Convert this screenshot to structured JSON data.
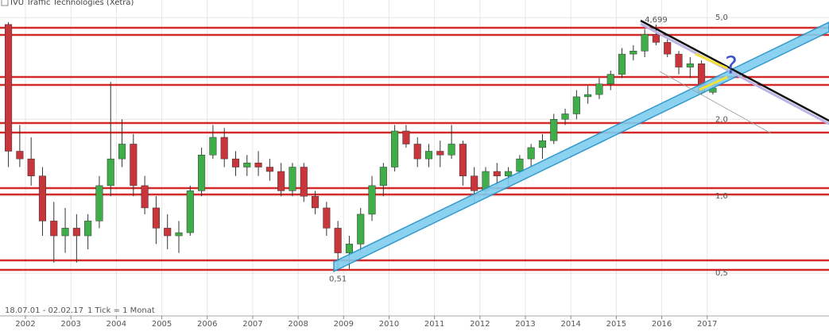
{
  "chart_data": {
    "type": "candlestick",
    "title": "IVU Traffic Technologies (Xetra)",
    "range_label": "18.07.01 - 02.02.17",
    "tick_label": "1 Tick = 1 Monat",
    "question_mark": "?",
    "log_scale": true,
    "grid": true,
    "up_color": "#3fae49",
    "down_color": "#c8353a",
    "xlim": [
      2001.44,
      2019.68
    ],
    "xticks": [
      2002,
      2003,
      2004,
      2005,
      2006,
      2007,
      2008,
      2009,
      2010,
      2011,
      2012,
      2013,
      2014,
      2015,
      2016,
      2017
    ],
    "ylim": [
      0.34,
      5.86
    ],
    "yticks": [
      {
        "value": 5,
        "label": "5,0"
      },
      {
        "value": 2,
        "label": "2,0"
      },
      {
        "value": 1,
        "label": "1,0"
      },
      {
        "value": 0.5,
        "label": "0,5"
      }
    ],
    "annotations": [
      {
        "label": "4,699",
        "value": 4.699
      },
      {
        "label": "0,51",
        "value": 0.51
      }
    ],
    "x": [
      2001.625,
      2001.875,
      2002.125,
      2002.375,
      2002.625,
      2002.875,
      2003.125,
      2003.375,
      2003.625,
      2003.875,
      2004.125,
      2004.375,
      2004.625,
      2004.875,
      2005.125,
      2005.375,
      2005.625,
      2005.875,
      2006.125,
      2006.375,
      2006.625,
      2006.875,
      2007.125,
      2007.375,
      2007.625,
      2007.875,
      2008.125,
      2008.375,
      2008.625,
      2008.875,
      2009.125,
      2009.375,
      2009.625,
      2009.875,
      2010.125,
      2010.375,
      2010.625,
      2010.875,
      2011.125,
      2011.375,
      2011.625,
      2011.875,
      2012.125,
      2012.375,
      2012.625,
      2012.875,
      2013.125,
      2013.375,
      2013.625,
      2013.875,
      2014.125,
      2014.375,
      2014.625,
      2014.875,
      2015.125,
      2015.375,
      2015.625,
      2015.875,
      2016.125,
      2016.375,
      2016.625,
      2016.875,
      2017.125
    ],
    "open": [
      4.7,
      1.5,
      1.4,
      1.2,
      0.8,
      0.7,
      0.75,
      0.7,
      0.8,
      1.1,
      1.4,
      1.6,
      1.1,
      0.9,
      0.75,
      0.7,
      0.72,
      1.05,
      1.45,
      1.7,
      1.4,
      1.3,
      1.35,
      1.3,
      1.25,
      1.05,
      1.3,
      1.0,
      0.9,
      0.75,
      0.6,
      0.65,
      0.85,
      1.1,
      1.3,
      1.8,
      1.6,
      1.4,
      1.5,
      1.45,
      1.6,
      1.2,
      1.05,
      1.25,
      1.2,
      1.25,
      1.4,
      1.55,
      1.65,
      2.0,
      2.1,
      2.45,
      2.5,
      2.75,
      3.0,
      3.6,
      3.7,
      4.3,
      4.0,
      3.6,
      3.2,
      3.3,
      2.55
    ],
    "high": [
      4.8,
      1.9,
      1.7,
      1.3,
      0.95,
      0.9,
      0.85,
      0.85,
      1.2,
      2.8,
      2.0,
      1.75,
      1.2,
      1.0,
      0.85,
      0.8,
      1.1,
      1.55,
      1.9,
      1.85,
      1.5,
      1.45,
      1.5,
      1.4,
      1.35,
      1.35,
      1.35,
      1.05,
      0.95,
      0.8,
      0.7,
      0.9,
      1.2,
      1.35,
      1.9,
      1.9,
      1.7,
      1.6,
      1.65,
      1.9,
      1.65,
      1.3,
      1.3,
      1.35,
      1.3,
      1.45,
      1.6,
      1.75,
      2.1,
      2.2,
      2.6,
      2.7,
      2.9,
      3.1,
      3.8,
      3.9,
      4.5,
      4.699,
      4.2,
      3.7,
      3.5,
      3.4,
      2.7
    ],
    "low": [
      1.3,
      1.3,
      1.1,
      0.7,
      0.55,
      0.6,
      0.55,
      0.62,
      0.75,
      1.0,
      1.3,
      1.0,
      0.85,
      0.65,
      0.62,
      0.6,
      0.7,
      1.0,
      1.4,
      1.3,
      1.2,
      1.2,
      1.2,
      1.15,
      1.0,
      1.0,
      0.95,
      0.85,
      0.7,
      0.51,
      0.52,
      0.6,
      0.8,
      1.0,
      1.25,
      1.55,
      1.3,
      1.3,
      1.3,
      1.4,
      1.1,
      0.95,
      1.0,
      1.1,
      1.1,
      1.2,
      1.3,
      1.4,
      1.6,
      1.9,
      2.0,
      2.3,
      2.4,
      2.6,
      2.9,
      3.4,
      3.5,
      3.9,
      3.5,
      3.0,
      2.9,
      2.5,
      2.5
    ],
    "close": [
      1.5,
      1.4,
      1.2,
      0.8,
      0.7,
      0.75,
      0.7,
      0.8,
      1.1,
      1.4,
      1.6,
      1.1,
      0.9,
      0.75,
      0.7,
      0.72,
      1.05,
      1.45,
      1.7,
      1.4,
      1.3,
      1.35,
      1.3,
      1.25,
      1.05,
      1.3,
      1.0,
      0.9,
      0.75,
      0.6,
      0.65,
      0.85,
      1.1,
      1.3,
      1.8,
      1.6,
      1.4,
      1.5,
      1.45,
      1.6,
      1.2,
      1.05,
      1.25,
      1.2,
      1.25,
      1.4,
      1.55,
      1.65,
      2.0,
      2.1,
      2.45,
      2.5,
      2.75,
      3.0,
      3.6,
      3.7,
      4.3,
      4.0,
      3.6,
      3.2,
      3.3,
      2.55,
      2.65
    ]
  }
}
